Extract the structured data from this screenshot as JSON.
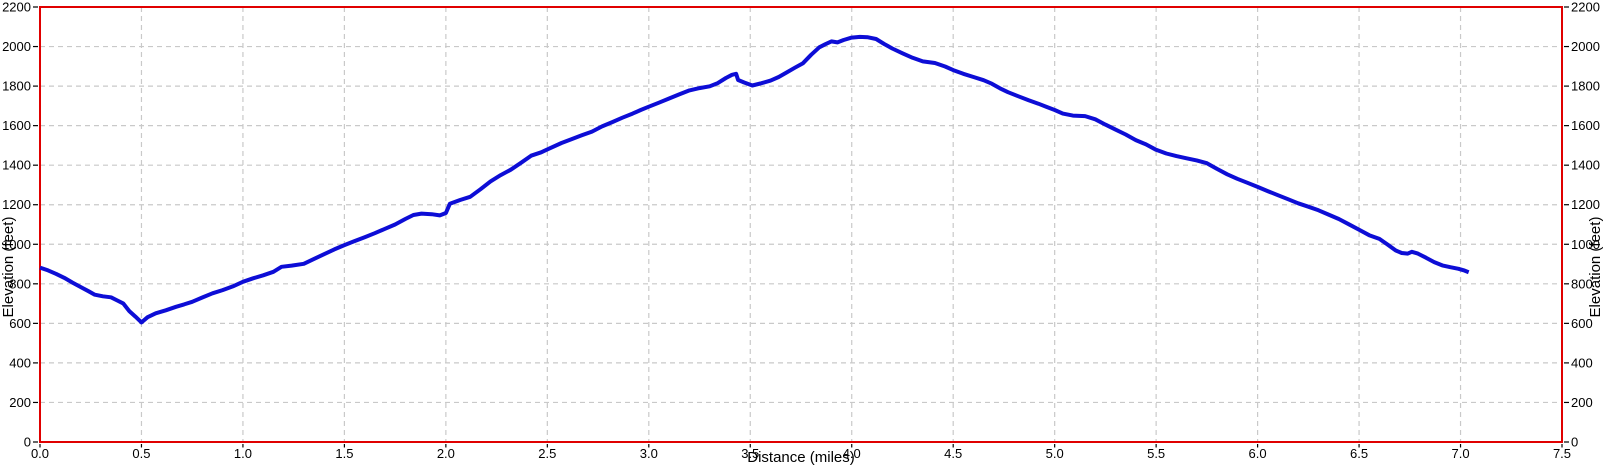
{
  "chart_data": {
    "type": "line",
    "title": "",
    "xlabel": "Distance (miles)",
    "ylabel_left": "Elevation (feet)",
    "ylabel_right": "Elevation (feet)",
    "xlim": [
      0,
      7.5
    ],
    "ylim": [
      0,
      2200
    ],
    "x_ticks": [
      "0.0",
      "0.5",
      "1.0",
      "1.5",
      "2.0",
      "2.5",
      "3.0",
      "3.5",
      "4.0",
      "4.5",
      "5.0",
      "5.5",
      "6.0",
      "6.5",
      "7.0",
      "7.5"
    ],
    "y_ticks": [
      "0",
      "200",
      "400",
      "600",
      "800",
      "1000",
      "1200",
      "1400",
      "1600",
      "1800",
      "2000",
      "2200"
    ],
    "grid": "dashed",
    "legend": "none",
    "colors": {
      "frame": "#e00000",
      "grid": "#c9c9c9",
      "line": "#0d0dd6",
      "text": "#000000",
      "background": "#ffffff"
    },
    "series": [
      {
        "name": "Elevation",
        "points": [
          [
            0.0,
            882
          ],
          [
            0.04,
            868
          ],
          [
            0.08,
            850
          ],
          [
            0.12,
            830
          ],
          [
            0.16,
            806
          ],
          [
            0.2,
            784
          ],
          [
            0.24,
            762
          ],
          [
            0.27,
            745
          ],
          [
            0.31,
            737
          ],
          [
            0.35,
            732
          ],
          [
            0.38,
            716
          ],
          [
            0.41,
            701
          ],
          [
            0.44,
            662
          ],
          [
            0.47,
            634
          ],
          [
            0.5,
            605
          ],
          [
            0.53,
            631
          ],
          [
            0.57,
            651
          ],
          [
            0.62,
            666
          ],
          [
            0.67,
            684
          ],
          [
            0.71,
            696
          ],
          [
            0.75,
            709
          ],
          [
            0.8,
            731
          ],
          [
            0.85,
            752
          ],
          [
            0.9,
            768
          ],
          [
            0.95,
            787
          ],
          [
            1.0,
            810
          ],
          [
            1.05,
            828
          ],
          [
            1.1,
            843
          ],
          [
            1.15,
            861
          ],
          [
            1.19,
            886
          ],
          [
            1.24,
            892
          ],
          [
            1.3,
            901
          ],
          [
            1.35,
            926
          ],
          [
            1.4,
            950
          ],
          [
            1.45,
            974
          ],
          [
            1.5,
            996
          ],
          [
            1.55,
            1016
          ],
          [
            1.6,
            1036
          ],
          [
            1.65,
            1056
          ],
          [
            1.7,
            1078
          ],
          [
            1.75,
            1100
          ],
          [
            1.8,
            1128
          ],
          [
            1.84,
            1148
          ],
          [
            1.88,
            1155
          ],
          [
            1.93,
            1152
          ],
          [
            1.97,
            1146
          ],
          [
            2.0,
            1158
          ],
          [
            2.02,
            1205
          ],
          [
            2.07,
            1224
          ],
          [
            2.12,
            1240
          ],
          [
            2.17,
            1278
          ],
          [
            2.22,
            1318
          ],
          [
            2.27,
            1350
          ],
          [
            2.32,
            1377
          ],
          [
            2.37,
            1412
          ],
          [
            2.42,
            1448
          ],
          [
            2.47,
            1465
          ],
          [
            2.5,
            1480
          ],
          [
            2.57,
            1512
          ],
          [
            2.62,
            1532
          ],
          [
            2.67,
            1551
          ],
          [
            2.72,
            1570
          ],
          [
            2.77,
            1596
          ],
          [
            2.82,
            1618
          ],
          [
            2.87,
            1640
          ],
          [
            2.92,
            1661
          ],
          [
            2.96,
            1679
          ],
          [
            3.0,
            1696
          ],
          [
            3.05,
            1716
          ],
          [
            3.1,
            1737
          ],
          [
            3.15,
            1758
          ],
          [
            3.2,
            1778
          ],
          [
            3.25,
            1790
          ],
          [
            3.3,
            1799
          ],
          [
            3.34,
            1815
          ],
          [
            3.38,
            1841
          ],
          [
            3.41,
            1857
          ],
          [
            3.43,
            1862
          ],
          [
            3.44,
            1831
          ],
          [
            3.47,
            1818
          ],
          [
            3.51,
            1803
          ],
          [
            3.55,
            1813
          ],
          [
            3.6,
            1828
          ],
          [
            3.64,
            1846
          ],
          [
            3.68,
            1869
          ],
          [
            3.72,
            1893
          ],
          [
            3.76,
            1916
          ],
          [
            3.8,
            1958
          ],
          [
            3.84,
            1996
          ],
          [
            3.87,
            2012
          ],
          [
            3.9,
            2026
          ],
          [
            3.93,
            2021
          ],
          [
            3.96,
            2033
          ],
          [
            4.0,
            2045
          ],
          [
            4.04,
            2049
          ],
          [
            4.08,
            2047
          ],
          [
            4.12,
            2038
          ],
          [
            4.16,
            2013
          ],
          [
            4.2,
            1990
          ],
          [
            4.25,
            1966
          ],
          [
            4.3,
            1943
          ],
          [
            4.35,
            1925
          ],
          [
            4.41,
            1917
          ],
          [
            4.46,
            1899
          ],
          [
            4.5,
            1881
          ],
          [
            4.55,
            1862
          ],
          [
            4.6,
            1846
          ],
          [
            4.65,
            1830
          ],
          [
            4.69,
            1812
          ],
          [
            4.73,
            1789
          ],
          [
            4.77,
            1769
          ],
          [
            4.82,
            1749
          ],
          [
            4.87,
            1729
          ],
          [
            4.92,
            1711
          ],
          [
            4.96,
            1695
          ],
          [
            5.0,
            1679
          ],
          [
            5.04,
            1661
          ],
          [
            5.09,
            1651
          ],
          [
            5.15,
            1648
          ],
          [
            5.2,
            1632
          ],
          [
            5.25,
            1605
          ],
          [
            5.3,
            1580
          ],
          [
            5.35,
            1555
          ],
          [
            5.4,
            1527
          ],
          [
            5.45,
            1505
          ],
          [
            5.5,
            1478
          ],
          [
            5.55,
            1459
          ],
          [
            5.6,
            1446
          ],
          [
            5.65,
            1435
          ],
          [
            5.7,
            1424
          ],
          [
            5.75,
            1410
          ],
          [
            5.8,
            1381
          ],
          [
            5.85,
            1354
          ],
          [
            5.9,
            1331
          ],
          [
            5.95,
            1311
          ],
          [
            6.0,
            1290
          ],
          [
            6.05,
            1269
          ],
          [
            6.1,
            1248
          ],
          [
            6.15,
            1228
          ],
          [
            6.2,
            1207
          ],
          [
            6.25,
            1190
          ],
          [
            6.3,
            1172
          ],
          [
            6.35,
            1150
          ],
          [
            6.4,
            1128
          ],
          [
            6.45,
            1101
          ],
          [
            6.5,
            1073
          ],
          [
            6.55,
            1046
          ],
          [
            6.6,
            1027
          ],
          [
            6.64,
            999
          ],
          [
            6.68,
            969
          ],
          [
            6.71,
            956
          ],
          [
            6.74,
            953
          ],
          [
            6.76,
            962
          ],
          [
            6.79,
            953
          ],
          [
            6.83,
            932
          ],
          [
            6.87,
            910
          ],
          [
            6.91,
            893
          ],
          [
            6.95,
            884
          ],
          [
            6.99,
            876
          ],
          [
            7.02,
            867
          ],
          [
            7.04,
            859
          ]
        ]
      }
    ]
  }
}
